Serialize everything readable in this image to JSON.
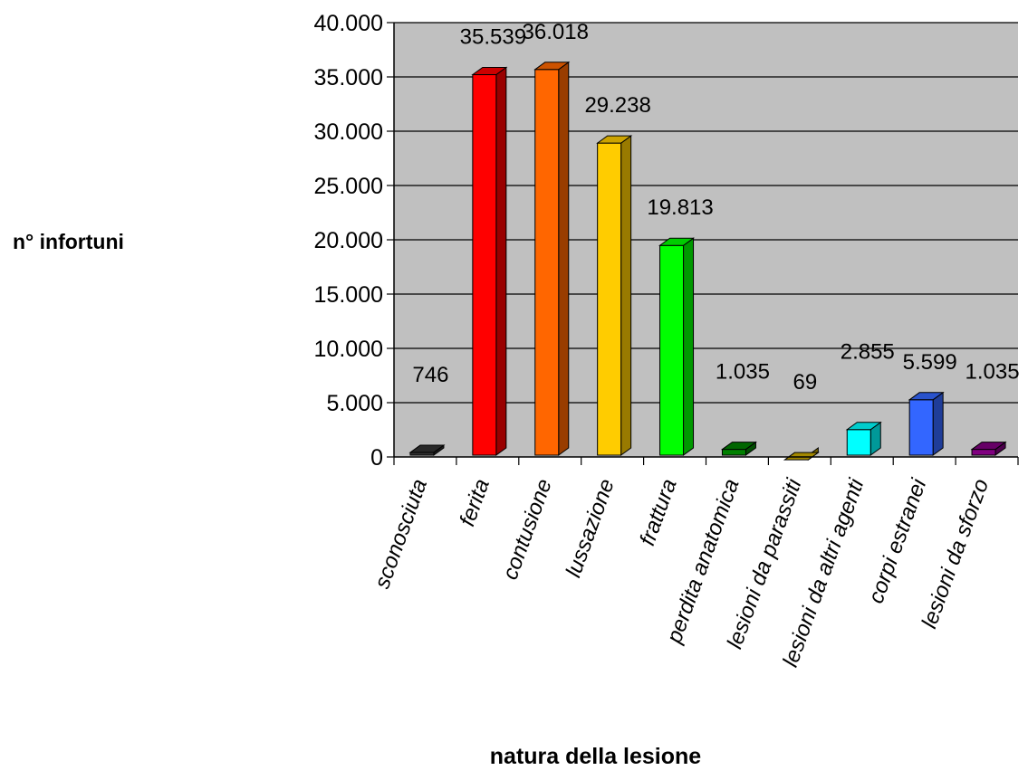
{
  "chart_data": {
    "type": "bar",
    "style": "3d-column",
    "title": "",
    "xlabel": "natura della lesione",
    "ylabel": "n° infortuni",
    "ylim": [
      0,
      40000
    ],
    "yticks": [
      0,
      5000,
      10000,
      15000,
      20000,
      25000,
      30000,
      35000,
      40000
    ],
    "ytick_labels": [
      "0",
      "5.000",
      "10.000",
      "15.000",
      "20.000",
      "25.000",
      "30.000",
      "35.000",
      "40.000"
    ],
    "grid": true,
    "plot_background": "#c0c0c0",
    "categories": [
      "sconosciuta",
      "ferita",
      "contusione",
      "lussazione",
      "frattura",
      "perdita anatomica",
      "lesioni da parassiti",
      "lesioni da altri agenti",
      "corpi estranei",
      "lesioni da sforzo"
    ],
    "values": [
      746,
      35539,
      36018,
      29238,
      19813,
      1035,
      69,
      2855,
      5599,
      1035
    ],
    "data_labels": [
      "746",
      "35.539",
      "36.018",
      "29.238",
      "19.813",
      "1.035",
      "69",
      "2.855",
      "5.599",
      "1.035"
    ],
    "colors": [
      "#333333",
      "#ff0000",
      "#ff6600",
      "#ffcc00",
      "#00ff00",
      "#008000",
      "#ccaa00",
      "#00ffff",
      "#3366ff",
      "#800080"
    ]
  }
}
